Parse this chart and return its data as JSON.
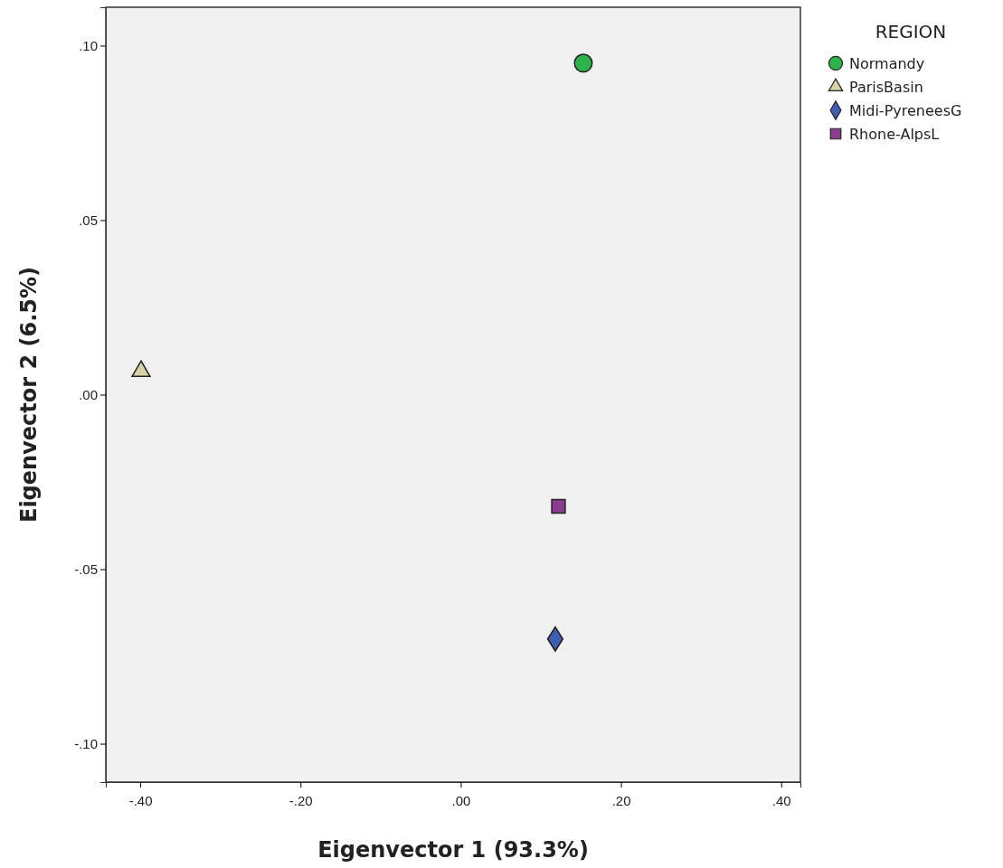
{
  "chart_data": {
    "type": "scatter",
    "xlabel": "Eigenvector 1 (93.3%)",
    "ylabel": "Eigenvector 2 (6.5%)",
    "legend_title": "REGION",
    "legend": "top right",
    "xlim": [
      -0.443,
      0.424
    ],
    "xticks": [
      {
        "value": -0.4,
        "label": "-.40"
      },
      {
        "value": -0.2,
        "label": "-.20"
      },
      {
        "value": 0,
        "label": ".00"
      },
      {
        "value": 0.2,
        "label": ".20"
      },
      {
        "value": 0.4,
        "label": ".40"
      }
    ],
    "ylim": [
      -0.111,
      0.111
    ],
    "yticks": [
      {
        "value": -0.1,
        "label": "-.10"
      },
      {
        "value": -0.05,
        "label": "-.05"
      },
      {
        "value": 0,
        "label": ".00"
      },
      {
        "value": 0.05,
        "label": ".05"
      },
      {
        "value": 0.1,
        "label": ".10"
      }
    ],
    "series": [
      {
        "name": "Normandy",
        "color": "#2db34a",
        "marker": "circle",
        "x": [
          0.153
        ],
        "values": [
          0.095
        ]
      },
      {
        "name": "ParisBasin",
        "color": "#d6d1a6",
        "marker": "triangle",
        "x": [
          -0.399
        ],
        "values": [
          0.0067
        ]
      },
      {
        "name": "Midi-PyreneesG",
        "color": "#3e5fb4",
        "marker": "diamond",
        "x": [
          0.118
        ],
        "values": [
          -0.07
        ]
      },
      {
        "name": "Rhone-AlpsL",
        "color": "#8e3a8e",
        "marker": "square",
        "x": [
          0.122
        ],
        "values": [
          -0.032
        ]
      }
    ]
  }
}
